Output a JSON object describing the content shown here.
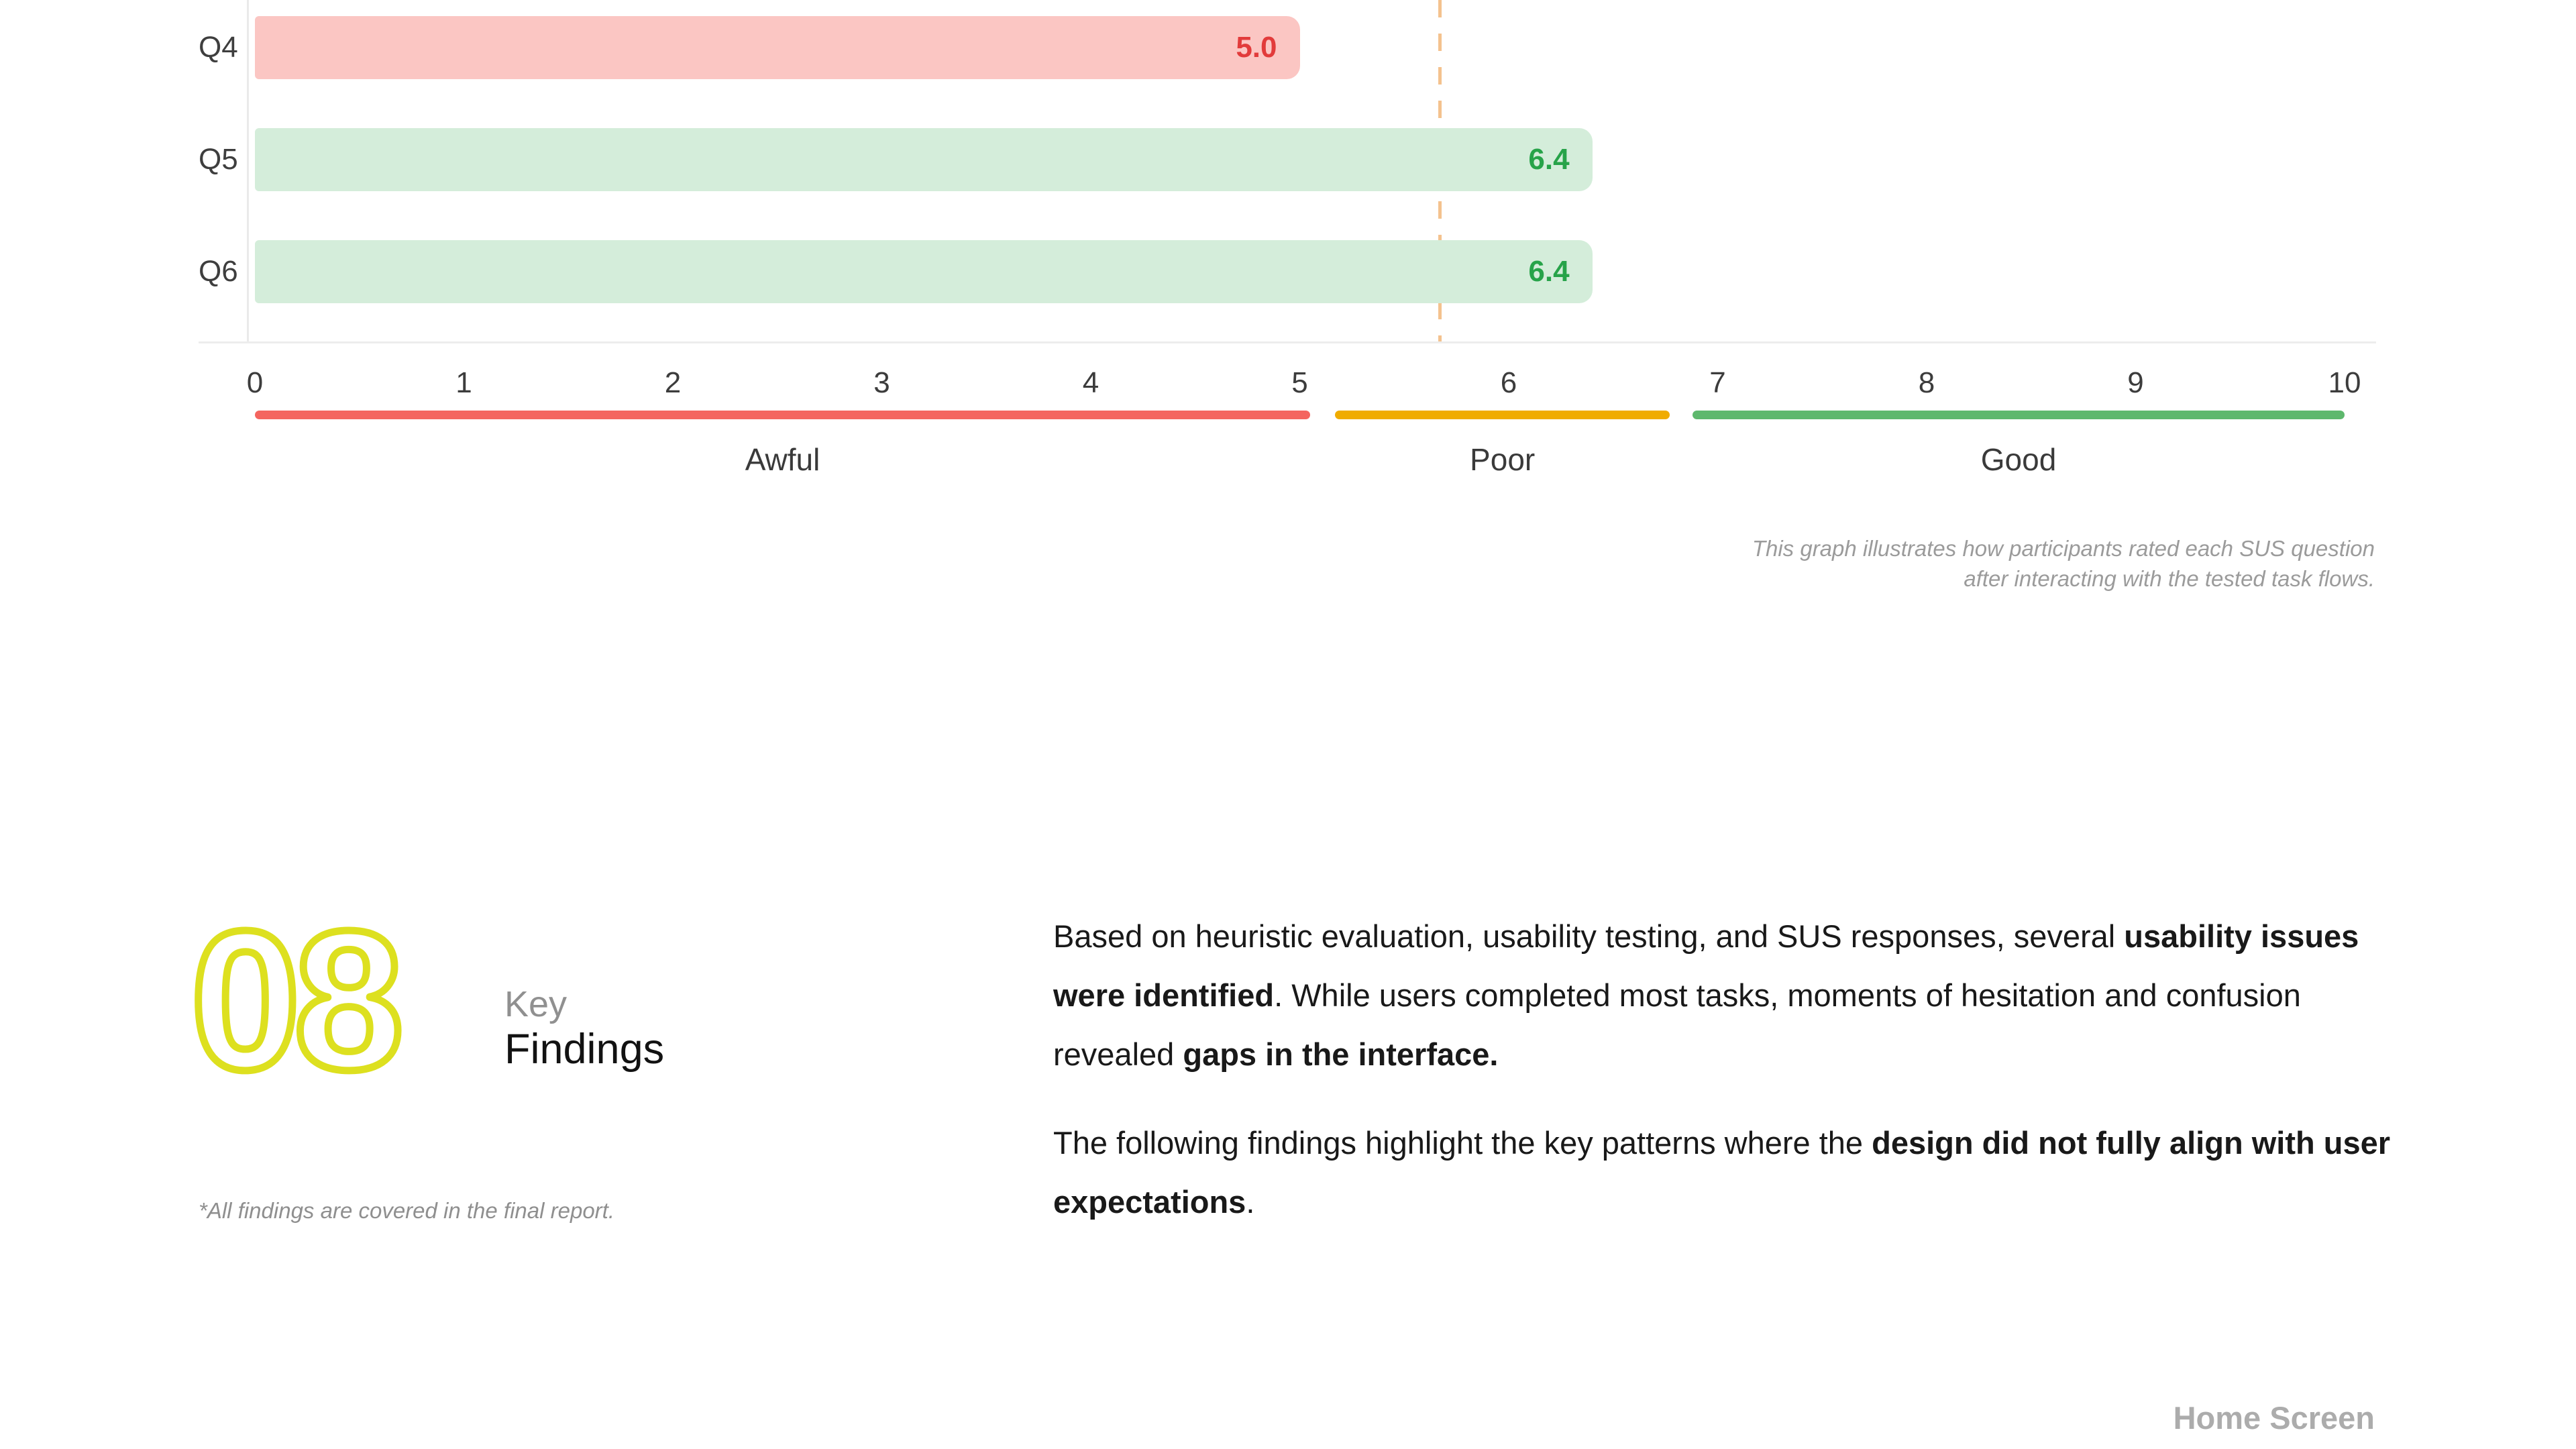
{
  "chart_data": {
    "type": "bar",
    "orientation": "horizontal",
    "rows": [
      {
        "label": "Q4",
        "value": 5.0,
        "value_label": "5.0",
        "bar_color": "#fbc6c3",
        "value_color": "#e23b3b"
      },
      {
        "label": "Q5",
        "value": 6.4,
        "value_label": "6.4",
        "bar_color": "#d4edda",
        "value_color": "#27a349"
      },
      {
        "label": "Q6",
        "value": 6.4,
        "value_label": "6.4",
        "bar_color": "#d4edda",
        "value_color": "#27a349"
      }
    ],
    "xlim": [
      0,
      10
    ],
    "x_ticks": [
      0,
      1,
      2,
      3,
      4,
      5,
      6,
      7,
      8,
      9,
      10
    ],
    "reference_line": {
      "value": 5.67,
      "color": "#f4c28e",
      "style": "dashed"
    },
    "bands": [
      {
        "label": "Awful",
        "from": 0,
        "to": 5.05,
        "color": "#f4655f"
      },
      {
        "label": "Poor",
        "from": 5.17,
        "to": 6.77,
        "color": "#f0ac00"
      },
      {
        "label": "Good",
        "from": 6.88,
        "to": 10,
        "color": "#5eb86d"
      }
    ],
    "caption_line1": "This graph illustrates how participants rated each SUS question",
    "caption_line2": "after interacting with the tested task flows."
  },
  "section": {
    "number": "08",
    "number_color": "#dde01f",
    "title_line1": "Key",
    "title_line2": "Findings",
    "footnote": "*All findings are covered in the final report."
  },
  "findings": {
    "p1_s1": "Based on heuristic evaluation, usability testing, and SUS responses, several ",
    "p1_b1": "usability issues were identified",
    "p1_s2": ". While users completed most tasks, moments of hesitation and confusion revealed ",
    "p1_b2": "gaps in the interface.",
    "p2_s1": "The following findings highlight the key patterns where the ",
    "p2_b1": "design did not fully align with user expectations",
    "p2_s2": "."
  },
  "footer": {
    "label": "Home Screen"
  }
}
